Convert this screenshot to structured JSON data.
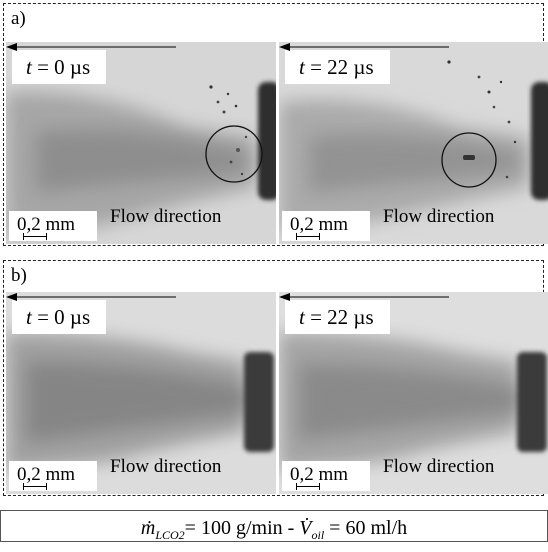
{
  "figure": {
    "panels": [
      {
        "label": "a)",
        "images": [
          {
            "time_label": "= 0 µs",
            "scale_label": "0,2 mm",
            "flow_label": "Flow direction"
          },
          {
            "time_label": "= 22 µs",
            "scale_label": "0,2 mm",
            "flow_label": "Flow direction"
          }
        ]
      },
      {
        "label": "b)",
        "images": [
          {
            "time_label": "= 0 µs",
            "scale_label": "0,2 mm",
            "flow_label": "Flow direction"
          },
          {
            "time_label": "= 22 µs",
            "scale_label": "0,2 mm",
            "flow_label": "Flow direction"
          }
        ]
      }
    ],
    "time_symbol": "t",
    "caption": {
      "mass_flow_sym": "ṁ",
      "mass_flow_sub": "LCO2",
      "mass_flow_value": "= 100 g/min - ",
      "vol_flow_sym": "V̇",
      "vol_flow_sub": "oil",
      "vol_flow_value": " = 60 ml/h"
    }
  }
}
